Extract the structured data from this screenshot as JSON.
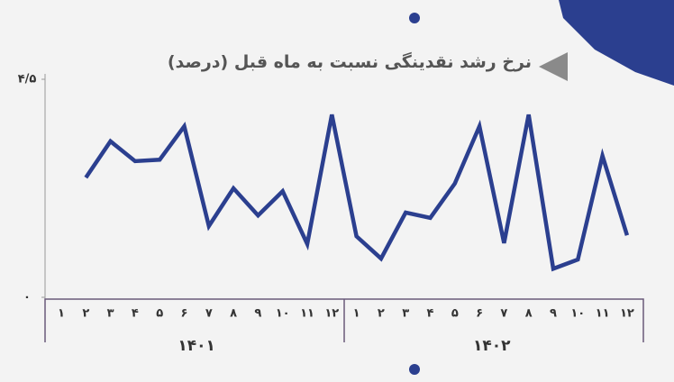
{
  "chart_data": {
    "type": "line",
    "title": "نرخ رشد نقدینگی نسبت به ماه قبل (درصد)",
    "categories": [
      "۱",
      "۲",
      "۳",
      "۴",
      "۵",
      "۶",
      "۷",
      "۸",
      "۹",
      "۱۰",
      "۱۱",
      "۱۲",
      "۱",
      "۲",
      "۳",
      "۴",
      "۵",
      "۶",
      "۷",
      "۸",
      "۹",
      "۱۰",
      "۱۱",
      "۱۲"
    ],
    "groups": [
      "۱۴۰۱",
      "۱۴۰۲"
    ],
    "values": [
      null,
      2.47,
      3.22,
      2.81,
      2.84,
      3.53,
      1.47,
      2.25,
      1.69,
      2.19,
      1.1,
      3.77,
      1.26,
      0.8,
      1.75,
      1.64,
      2.35,
      3.53,
      1.12,
      3.77,
      0.59,
      0.78,
      2.92,
      1.28
    ],
    "color": "#2b3f8f",
    "ylim": [
      0,
      4.5
    ],
    "yticks": [
      {
        "value": 0,
        "label": "۰"
      },
      {
        "value": 4.5,
        "label": "۴/۵"
      }
    ]
  }
}
